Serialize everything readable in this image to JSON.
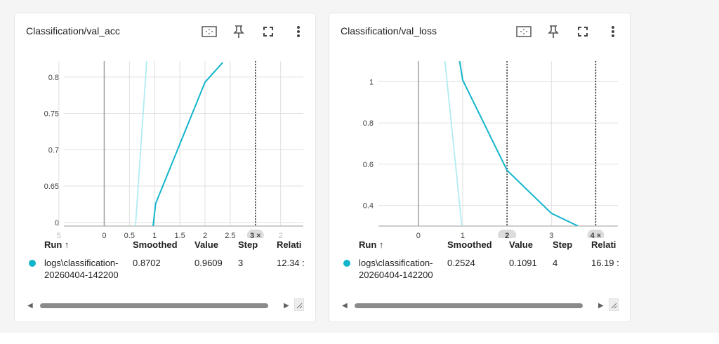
{
  "colors": {
    "accent": "#12b5cb",
    "accent_light": "#b2ebf2",
    "grid": "#e0e0e0",
    "axis": "#9e9e9e"
  },
  "cards": [
    {
      "title": "Classification/val_acc",
      "icons": [
        "fit-domain-icon",
        "pin-icon",
        "fullscreen-icon",
        "more-vert-icon"
      ],
      "xtick_labels": [
        "5",
        "0",
        "0.5",
        "1",
        "1.5",
        "2",
        "2.5",
        "3 ×",
        "2"
      ],
      "ytick_labels": [
        "0.8",
        "0.75",
        "0.7",
        "0.65",
        "0"
      ],
      "table": {
        "headers": {
          "run": "Run ↑",
          "smoothed": "Smoothed",
          "value": "Value",
          "step": "Step",
          "relative": "Relati"
        },
        "row": {
          "run_line1": "logs\\classification-",
          "run_line2": "20260404-142200",
          "smoothed": "0.8702",
          "value": "0.9609",
          "step": "3",
          "relative": "12.34 :"
        }
      }
    },
    {
      "title": "Classification/val_loss",
      "icons": [
        "fit-domain-icon",
        "pin-icon",
        "fullscreen-icon",
        "more-vert-icon"
      ],
      "xtick_labels": [
        "0",
        "1",
        "2",
        "3",
        "4 ×"
      ],
      "ytick_labels": [
        "1",
        "0.8",
        "0.6",
        "0.4"
      ],
      "table": {
        "headers": {
          "run": "Run ↑",
          "smoothed": "Smoothed",
          "value": "Value",
          "step": "Step",
          "relative": "Relati"
        },
        "row": {
          "run_line1": "logs\\classification-",
          "run_line2": "20260404-142200",
          "smoothed": "0.2524",
          "value": "0.1091",
          "step": "4",
          "relative": "16.19 :"
        }
      }
    }
  ],
  "chart_data": [
    {
      "type": "line",
      "title": "Classification/val_acc",
      "xlim": [
        -0.8,
        3.95
      ],
      "ylim": [
        0.595,
        0.822
      ],
      "series": [
        {
          "name": "logs\\classification-20260404-142200",
          "style": "raw",
          "x": [
            0.62,
            0.87
          ],
          "y": [
            0.595,
            0.85
          ]
        },
        {
          "name": "logs\\classification-20260404-142200",
          "style": "smoothed",
          "x": [
            0.97,
            1.02,
            2.0,
            2.35
          ],
          "y": [
            0.595,
            0.626,
            0.793,
            0.82
          ]
        }
      ],
      "markers": [
        {
          "x": 3,
          "label": "3 ×"
        }
      ]
    },
    {
      "type": "line",
      "title": "Classification/val_loss",
      "xlim": [
        -0.9,
        4.5
      ],
      "ylim": [
        0.3,
        1.1
      ],
      "series": [
        {
          "name": "logs\\classification-20260404-142200",
          "style": "raw",
          "x": [
            0.6,
            0.98
          ],
          "y": [
            1.1,
            0.3
          ]
        },
        {
          "name": "logs\\classification-20260404-142200",
          "style": "smoothed",
          "x": [
            0.93,
            1.0,
            2.0,
            3.0,
            3.6
          ],
          "y": [
            1.1,
            1.008,
            0.57,
            0.362,
            0.3
          ]
        }
      ],
      "markers": [
        {
          "x": 2,
          "label": "2"
        },
        {
          "x": 4,
          "label": "4 ×"
        }
      ]
    }
  ]
}
